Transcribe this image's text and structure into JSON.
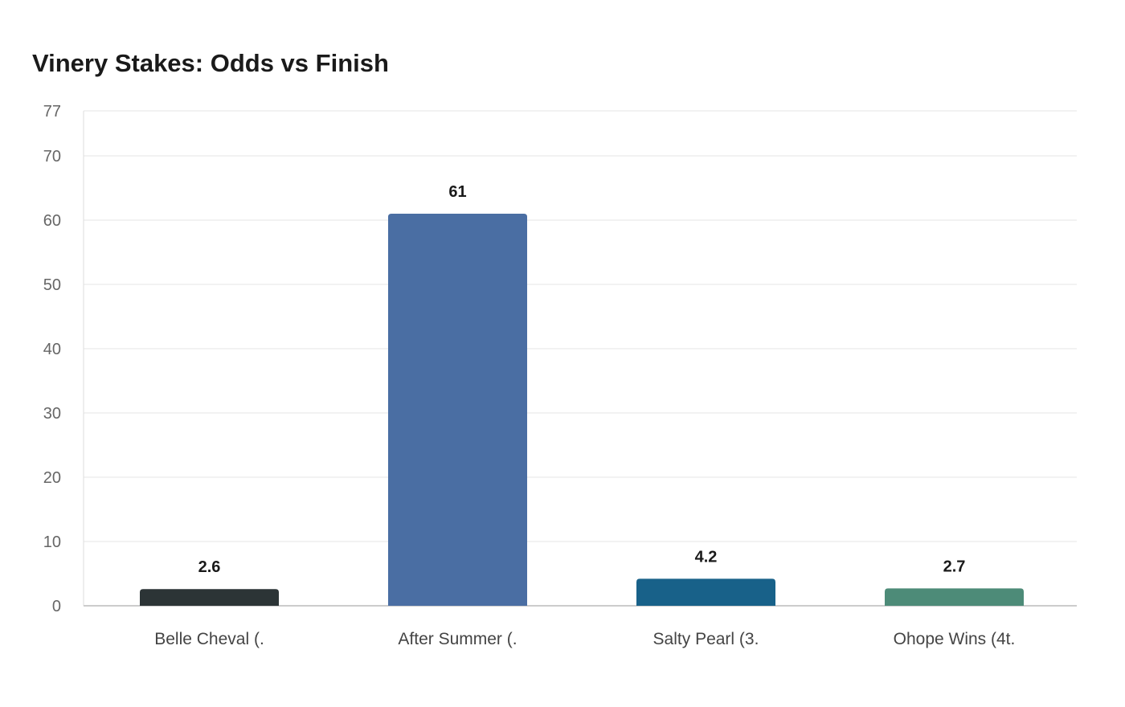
{
  "chart_data": {
    "type": "bar",
    "title": "Vinery Stakes: Odds vs Finish",
    "xlabel": "",
    "ylabel": "",
    "categories": [
      "Belle Cheval (.",
      "After Summer (.",
      "Salty Pearl (3.",
      "Ohope Wins (4t."
    ],
    "values": [
      2.6,
      61,
      4.2,
      2.7
    ],
    "value_labels": [
      "2.6",
      "61",
      "4.2",
      "2.7"
    ],
    "bar_colors": [
      "#2c3436",
      "#4a6ea3",
      "#186189",
      "#4d8b78"
    ],
    "ylim": [
      0,
      77
    ],
    "yticks": [
      0,
      10,
      20,
      30,
      40,
      50,
      60,
      70,
      77
    ],
    "grid": true,
    "legend": "none"
  }
}
